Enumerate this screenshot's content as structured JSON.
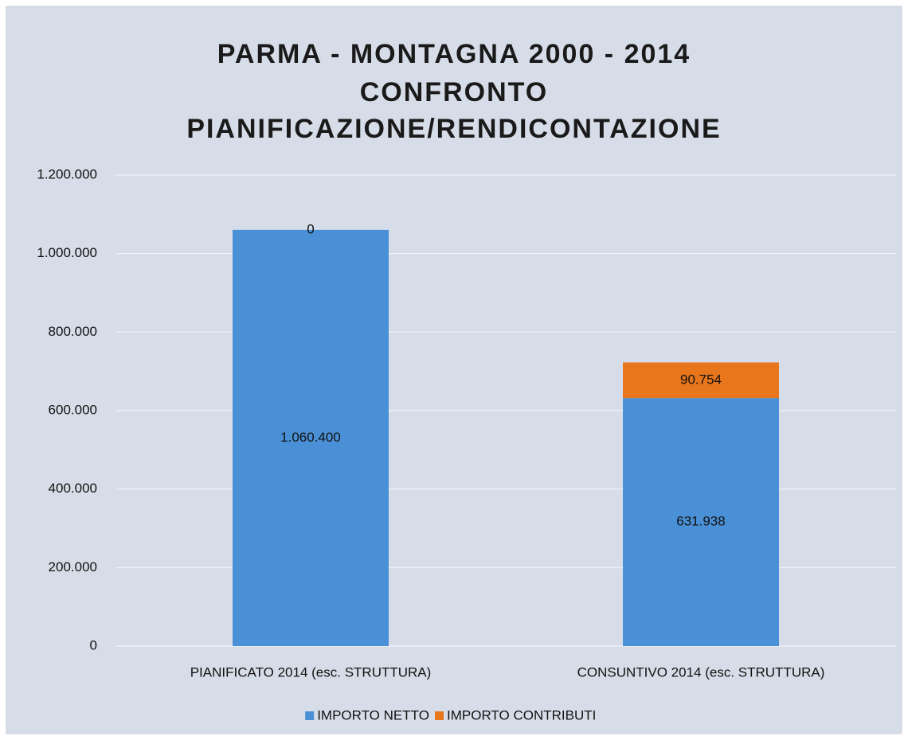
{
  "chart_data": {
    "type": "stacked_bar",
    "title": [
      "PARMA - MONTAGNA 2000 - 2014",
      "CONFRONTO",
      "PIANIFICAZIONE/RENDICONTAZIONE"
    ],
    "categories": [
      "PIANIFICATO 2014 (esc. STRUTTURA)",
      "CONSUNTIVO 2014 (esc. STRUTTURA)"
    ],
    "series": [
      {
        "name": "IMPORTO NETTO",
        "color": "#4a90d6",
        "values": [
          1060400,
          631938
        ],
        "value_labels": [
          "1.060.400",
          "631.938"
        ]
      },
      {
        "name": "IMPORTO CONTRIBUTI",
        "color": "#e8761c",
        "values": [
          0,
          90754
        ],
        "value_labels": [
          "0",
          "90.754"
        ]
      }
    ],
    "ylim": [
      0,
      1200000
    ],
    "yticks": [
      0,
      {
        "value": 200000,
        "label": "200.000"
      },
      {
        "value": 400000,
        "label": "400.000"
      },
      {
        "value": 600000,
        "label": "600.000"
      },
      {
        "value": 800000,
        "label": "800.000"
      },
      {
        "value": 1000000,
        "label": "1.000.000"
      },
      {
        "value": 1200000,
        "label": "1.200.000"
      }
    ],
    "grid": true,
    "legend": "bottom"
  }
}
